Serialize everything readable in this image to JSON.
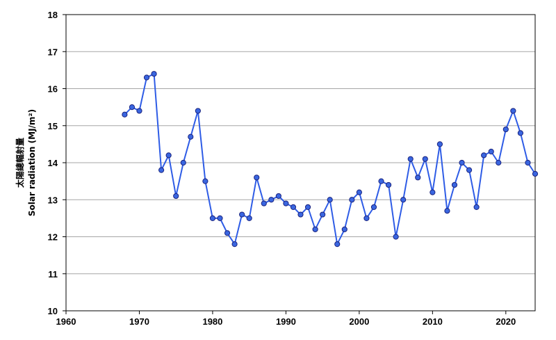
{
  "chart_data": {
    "type": "line",
    "title": "",
    "xlabel": "",
    "ylabel": "太陽總輻射量",
    "ylabel_sub": "Solar radiation (MJ/m²)",
    "xlim": [
      1960,
      2024
    ],
    "ylim": [
      10,
      18
    ],
    "xticks": [
      1960,
      1970,
      1980,
      1990,
      2000,
      2010,
      2020
    ],
    "yticks": [
      10,
      11,
      12,
      13,
      14,
      15,
      16,
      17,
      18
    ],
    "grid": "horizontal",
    "legend": "none",
    "colors": {
      "line": "#2e5ce6",
      "marker_fill": "#3a66e0",
      "marker_edge": "#1a237e",
      "grid": "#a6a6a6",
      "axis": "#000000"
    },
    "series": [
      {
        "x": [
          1968,
          1969,
          1970,
          1971,
          1972,
          1973,
          1974,
          1975,
          1976,
          1977,
          1978,
          1979,
          1980,
          1981,
          1982,
          1983,
          1984,
          1985,
          1986,
          1987,
          1988,
          1989,
          1990,
          1991,
          1992,
          1993,
          1994,
          1995,
          1996,
          1997,
          1998,
          1999,
          2000,
          2001,
          2002,
          2003,
          2004,
          2005,
          2006,
          2007,
          2008,
          2009,
          2010,
          2011,
          2012,
          2013,
          2014,
          2015,
          2016,
          2017,
          2018,
          2019,
          2020,
          2021,
          2022,
          2023,
          2024
        ],
        "values": [
          15.3,
          15.5,
          15.4,
          16.3,
          16.4,
          13.8,
          14.2,
          13.1,
          14.0,
          14.7,
          15.4,
          13.5,
          12.5,
          12.5,
          12.1,
          11.8,
          12.6,
          12.5,
          13.6,
          12.9,
          13.0,
          13.1,
          12.9,
          12.8,
          12.6,
          12.8,
          12.2,
          12.6,
          13.0,
          11.8,
          12.2,
          13.0,
          13.2,
          12.5,
          12.8,
          13.5,
          13.4,
          12.0,
          13.0,
          14.1,
          13.6,
          14.1,
          13.2,
          14.5,
          12.7,
          13.4,
          14.0,
          13.8,
          12.8,
          14.2,
          14.3,
          14.0,
          14.9,
          15.4,
          14.8,
          14.0,
          13.7
        ]
      }
    ]
  }
}
